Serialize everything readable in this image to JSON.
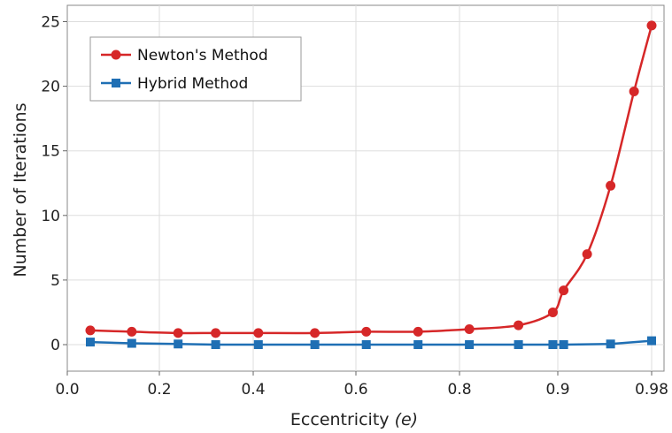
{
  "chart_data": {
    "type": "line",
    "xlabel": "Eccentricity",
    "xlabel_symbol": "(e)",
    "ylabel": "Number of Iterations",
    "x_ticks": [
      "0.0",
      "0.2",
      "0.4",
      "0.6",
      "0.8",
      "0.9",
      "0.98"
    ],
    "y_ticks": [
      "0",
      "5",
      "10",
      "15",
      "20",
      "25"
    ],
    "ylim": [
      -2,
      25
    ],
    "grid": true,
    "legend_position": "top-left",
    "series": [
      {
        "name": "Newton's Method",
        "color": "#d62728",
        "marker": "circle",
        "x": [
          0.05,
          0.14,
          0.24,
          0.32,
          0.41,
          0.52,
          0.62,
          0.72,
          0.81,
          0.86,
          0.895,
          0.905,
          0.925,
          0.945,
          0.965,
          0.98
        ],
        "y": [
          1.1,
          1.0,
          0.9,
          0.9,
          0.9,
          0.9,
          1.0,
          1.0,
          1.2,
          1.5,
          2.5,
          4.2,
          7.0,
          12.3,
          19.6,
          24.7
        ]
      },
      {
        "name": "Hybrid Method",
        "color": "#1f6fb4",
        "marker": "square",
        "x": [
          0.05,
          0.14,
          0.24,
          0.32,
          0.41,
          0.52,
          0.62,
          0.72,
          0.81,
          0.86,
          0.895,
          0.905,
          0.945,
          0.98
        ],
        "y": [
          0.2,
          0.1,
          0.05,
          0.0,
          0.0,
          0.0,
          0.0,
          0.0,
          0.0,
          0.0,
          0.0,
          0.0,
          0.05,
          0.3
        ]
      }
    ]
  }
}
